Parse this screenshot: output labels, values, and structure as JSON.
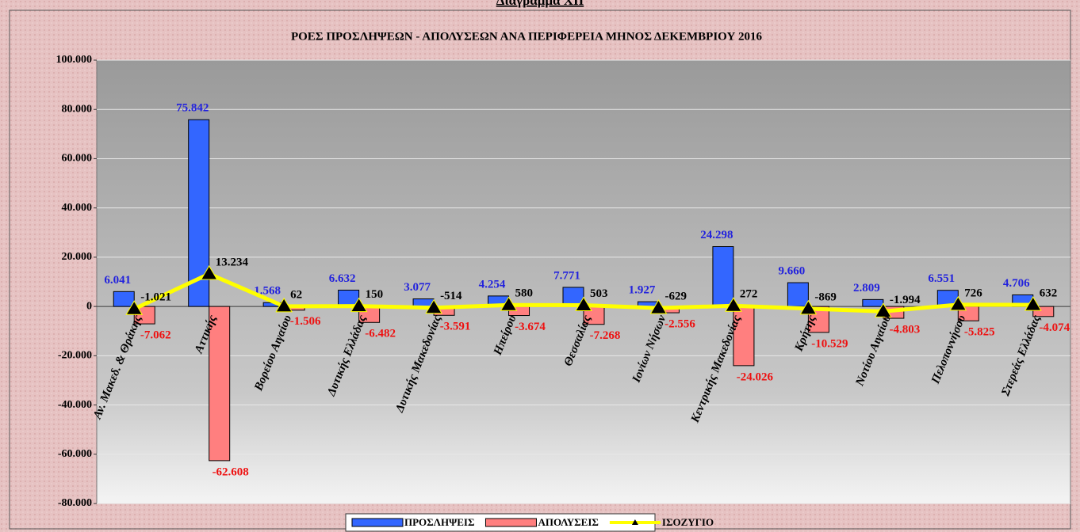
{
  "header": "Διάγραμμα ΧΙΙ",
  "chart_data": {
    "type": "bar_line",
    "title": "ΡΟΕΣ ΠΡΟΣΛΗΨΕΩΝ - ΑΠΟΛΥΣΕΩΝ ΑΝΑ ΠΕΡΙΦΕΡΕΙΑ ΜΗΝΟΣ  ΔΕΚΕΜΒΡΙΟΥ  2016",
    "categories": [
      "Αν. Μακεδ. & Θράκης",
      "Αττικής",
      "Βορείου Αιγαίου",
      "Δυτικής Ελλάδας",
      "Δυτικής Μακεδονίας",
      "Ηπείρου",
      "Θεσσαλίας",
      "Ιονίων Νήσων",
      "Κεντρικής Μακεδονίας",
      "Κρήτης",
      "Νοτίου Αιγαίου",
      "Πελοποννήσου",
      "Στερεάς Ελλάδας"
    ],
    "series": [
      {
        "name": "ΠΡΟΣΛΗΨΕΙΣ",
        "type": "bar",
        "color": "#3366ff",
        "label_color": "#2222dd",
        "values": [
          6041,
          75842,
          1568,
          6632,
          3077,
          4254,
          7771,
          1927,
          24298,
          9660,
          2809,
          6551,
          4706
        ],
        "value_labels": [
          "6.041",
          "75.842",
          "1.568",
          "6.632",
          "3.077",
          "4.254",
          "7.771",
          "1.927",
          "24.298",
          "9.660",
          "2.809",
          "6.551",
          "4.706"
        ]
      },
      {
        "name": "ΑΠΟΛΥΣΕΙΣ",
        "type": "bar",
        "color": "#ff7f7f",
        "label_color": "#ee1111",
        "values": [
          -7062,
          -62608,
          -1506,
          -6482,
          -3591,
          -3674,
          -7268,
          -2556,
          -24026,
          -10529,
          -4803,
          -5825,
          -4074
        ],
        "value_labels": [
          "-7.062",
          "-62.608",
          "-1.506",
          "-6.482",
          "-3.591",
          "-3.674",
          "-7.268",
          "-2.556",
          "-24.026",
          "-10.529",
          "-4.803",
          "-5.825",
          "-4.074"
        ]
      },
      {
        "name": "ΙΣΟΖΥΓΙΟ",
        "type": "line",
        "color": "#ffff00",
        "label_color": "#000000",
        "values": [
          -1021,
          13234,
          62,
          150,
          -514,
          580,
          503,
          -629,
          272,
          -869,
          -1994,
          726,
          632
        ],
        "value_labels": [
          "-1.021",
          "13.234",
          "62",
          "150",
          "-514",
          "580",
          "503",
          "-629",
          "272",
          "-869",
          "-1.994",
          "726",
          "632"
        ]
      }
    ],
    "ylim": [
      -80000,
      100000
    ],
    "yticks": [
      {
        "value": -80000,
        "label": "-80.000"
      },
      {
        "value": -60000,
        "label": "-60.000"
      },
      {
        "value": -40000,
        "label": "-40.000"
      },
      {
        "value": -20000,
        "label": "-20.000"
      },
      0,
      {
        "value": 20000,
        "label": "20.000"
      },
      {
        "value": 40000,
        "label": "40.000"
      },
      {
        "value": 60000,
        "label": "60.000"
      },
      {
        "value": 80000,
        "label": "80.000"
      },
      {
        "value": 100000,
        "label": "100.000"
      }
    ],
    "grid": true,
    "legend": "bottom"
  }
}
